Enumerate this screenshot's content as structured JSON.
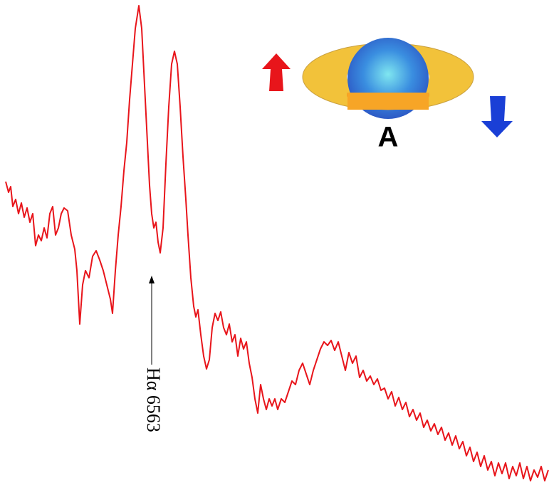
{
  "annotations": {
    "planet_label": "A",
    "line_label": "Hα 6563"
  }
}
